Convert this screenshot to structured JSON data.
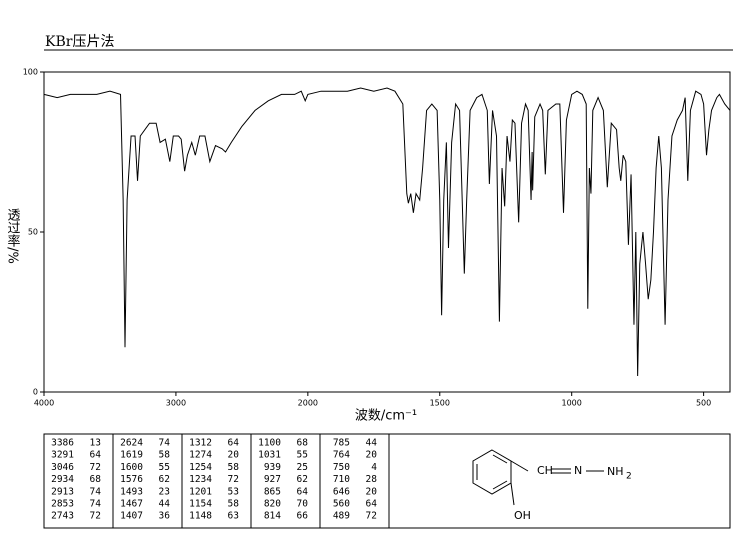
{
  "chart_data": {
    "type": "line",
    "title": "KBr压片法",
    "x_label": "波数/cm⁻¹",
    "y_label": "透过率/%",
    "xlim": [
      4000,
      400
    ],
    "xticks": [
      4000,
      3000,
      2000,
      1500,
      1000,
      500
    ],
    "ylim": [
      0,
      100
    ],
    "yticks": [
      0,
      50,
      100
    ],
    "color": "#000000",
    "x": [
      4000,
      3900,
      3800,
      3700,
      3600,
      3500,
      3420,
      3400,
      3386,
      3370,
      3340,
      3310,
      3291,
      3270,
      3200,
      3150,
      3120,
      3080,
      3046,
      3020,
      2980,
      2960,
      2934,
      2913,
      2880,
      2853,
      2820,
      2780,
      2743,
      2700,
      2650,
      2624,
      2580,
      2500,
      2400,
      2300,
      2200,
      2100,
      2050,
      2020,
      2000,
      1950,
      1900,
      1850,
      1800,
      1750,
      1700,
      1670,
      1640,
      1625,
      1619,
      1610,
      1600,
      1590,
      1576,
      1565,
      1550,
      1530,
      1510,
      1500,
      1493,
      1485,
      1475,
      1467,
      1455,
      1440,
      1425,
      1415,
      1407,
      1398,
      1385,
      1360,
      1340,
      1320,
      1312,
      1300,
      1285,
      1274,
      1264,
      1254,
      1245,
      1234,
      1225,
      1215,
      1201,
      1190,
      1175,
      1165,
      1154,
      1150,
      1148,
      1140,
      1120,
      1110,
      1100,
      1090,
      1060,
      1045,
      1031,
      1020,
      1000,
      980,
      960,
      945,
      939,
      933,
      927,
      920,
      900,
      880,
      865,
      850,
      830,
      820,
      814,
      805,
      795,
      785,
      775,
      764,
      757,
      750,
      742,
      730,
      720,
      710,
      700,
      690,
      680,
      670,
      660,
      646,
      635,
      620,
      600,
      580,
      570,
      560,
      550,
      530,
      510,
      500,
      489,
      480,
      470,
      450,
      440,
      420,
      400
    ],
    "values": [
      93,
      92,
      93,
      93,
      93,
      94,
      93,
      60,
      14,
      60,
      80,
      80,
      66,
      80,
      84,
      84,
      78,
      79,
      72,
      80,
      80,
      79,
      69,
      74,
      78,
      74,
      80,
      80,
      72,
      77,
      76,
      75,
      78,
      83,
      88,
      91,
      93,
      93,
      94,
      91,
      93,
      94,
      94,
      94,
      95,
      94,
      95,
      94,
      90,
      62,
      59,
      62,
      56,
      62,
      60,
      70,
      88,
      90,
      88,
      60,
      24,
      60,
      78,
      45,
      78,
      90,
      88,
      60,
      37,
      60,
      88,
      92,
      93,
      88,
      65,
      88,
      80,
      22,
      70,
      58,
      80,
      72,
      85,
      84,
      53,
      84,
      90,
      88,
      60,
      75,
      63,
      86,
      90,
      88,
      68,
      88,
      90,
      90,
      56,
      85,
      93,
      94,
      93,
      90,
      26,
      70,
      62,
      88,
      92,
      88,
      64,
      84,
      82,
      70,
      66,
      74,
      72,
      46,
      68,
      21,
      50,
      5,
      40,
      50,
      40,
      29,
      35,
      50,
      70,
      80,
      70,
      21,
      60,
      80,
      85,
      88,
      92,
      66,
      88,
      94,
      93,
      90,
      74,
      82,
      88,
      92,
      93,
      90,
      88
    ]
  },
  "peak_table": {
    "groups": [
      [
        [
          3386,
          13
        ],
        [
          3291,
          64
        ],
        [
          3046,
          72
        ],
        [
          2934,
          68
        ],
        [
          2913,
          74
        ],
        [
          2853,
          74
        ],
        [
          2743,
          72
        ]
      ],
      [
        [
          2624,
          74
        ],
        [
          1619,
          58
        ],
        [
          1600,
          55
        ],
        [
          1576,
          62
        ],
        [
          1493,
          23
        ],
        [
          1467,
          44
        ],
        [
          1407,
          36
        ]
      ],
      [
        [
          1312,
          64
        ],
        [
          1274,
          20
        ],
        [
          1254,
          58
        ],
        [
          1234,
          72
        ],
        [
          1201,
          53
        ],
        [
          1154,
          58
        ],
        [
          1148,
          63
        ]
      ],
      [
        [
          1100,
          68
        ],
        [
          1031,
          55
        ],
        [
          939,
          25
        ],
        [
          927,
          62
        ],
        [
          865,
          64
        ],
        [
          820,
          70
        ],
        [
          814,
          66
        ]
      ],
      [
        [
          785,
          44
        ],
        [
          764,
          20
        ],
        [
          750,
          4
        ],
        [
          710,
          28
        ],
        [
          646,
          20
        ],
        [
          560,
          64
        ],
        [
          489,
          72
        ]
      ]
    ]
  },
  "structure": {
    "labels": [
      "CH",
      "N",
      "NH",
      "2",
      "OH"
    ]
  }
}
